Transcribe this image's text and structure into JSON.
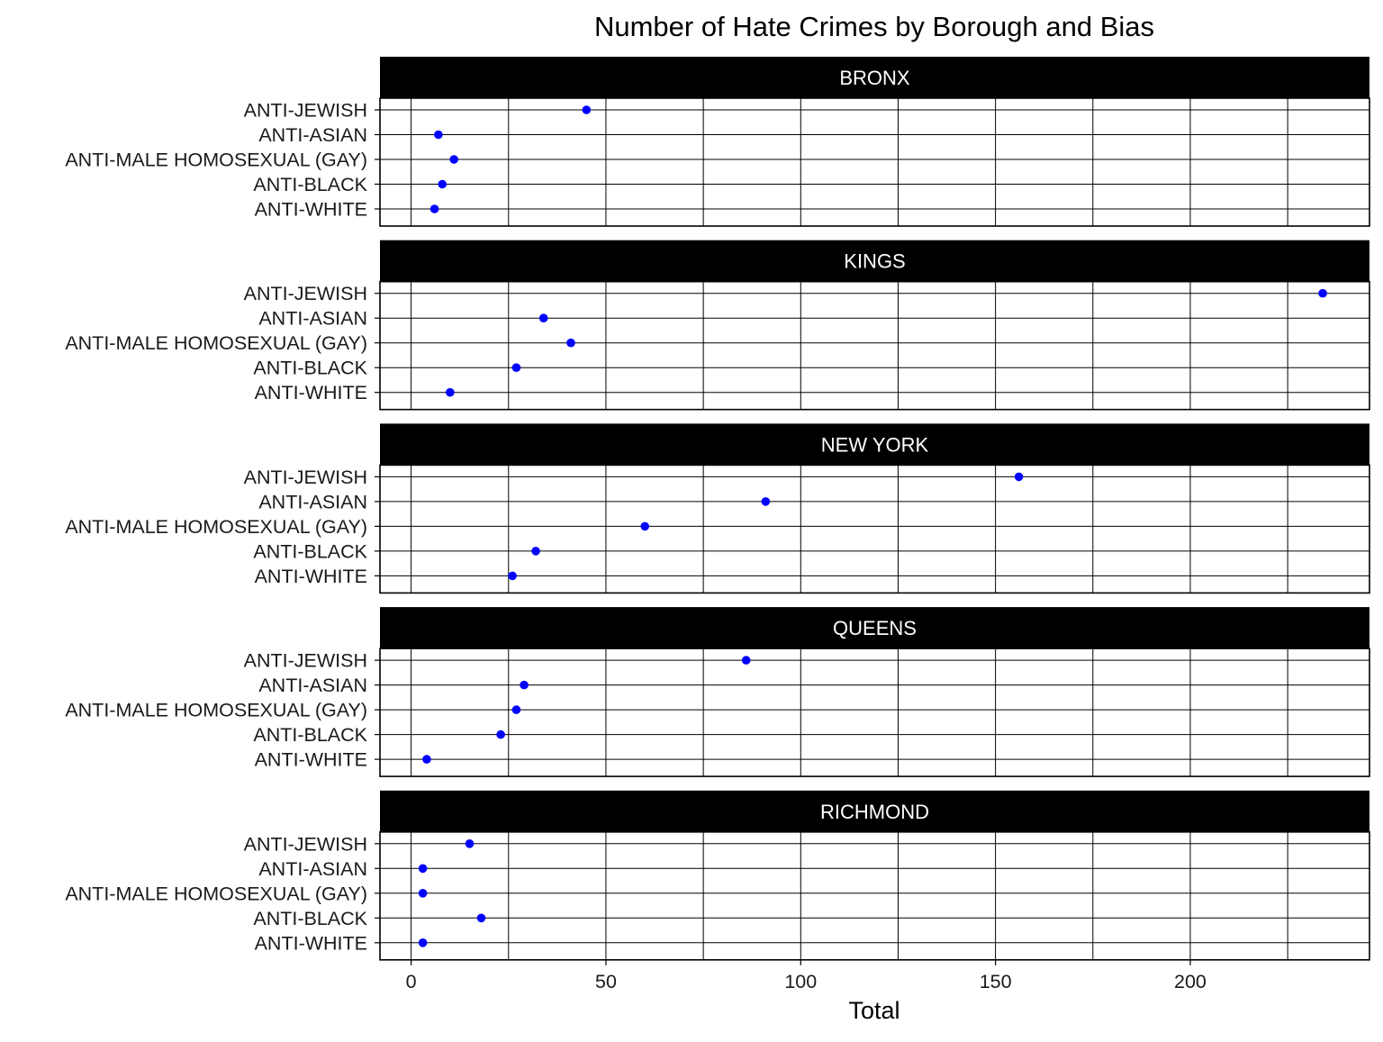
{
  "chart_data": {
    "type": "scatter",
    "title": "Number of Hate Crimes by Borough and Bias",
    "xlabel": "Total",
    "ylabel": "",
    "xlim": [
      -8,
      246
    ],
    "xticks": [
      0,
      50,
      100,
      150,
      200
    ],
    "categories": [
      "ANTI-JEWISH",
      "ANTI-ASIAN",
      "ANTI-MALE HOMOSEXUAL (GAY)",
      "ANTI-BLACK",
      "ANTI-WHITE"
    ],
    "point_color": "#0000ff",
    "strip_color": "#000000",
    "strip_text_color": "#ffffff",
    "grid": true,
    "panels": [
      {
        "name": "BRONX",
        "values": [
          45,
          7,
          11,
          8,
          6
        ]
      },
      {
        "name": "KINGS",
        "values": [
          234,
          34,
          41,
          27,
          10
        ]
      },
      {
        "name": "NEW YORK",
        "values": [
          156,
          91,
          60,
          32,
          26
        ]
      },
      {
        "name": "QUEENS",
        "values": [
          86,
          29,
          27,
          23,
          4
        ]
      },
      {
        "name": "RICHMOND",
        "values": [
          15,
          3,
          3,
          18,
          3
        ]
      }
    ]
  }
}
